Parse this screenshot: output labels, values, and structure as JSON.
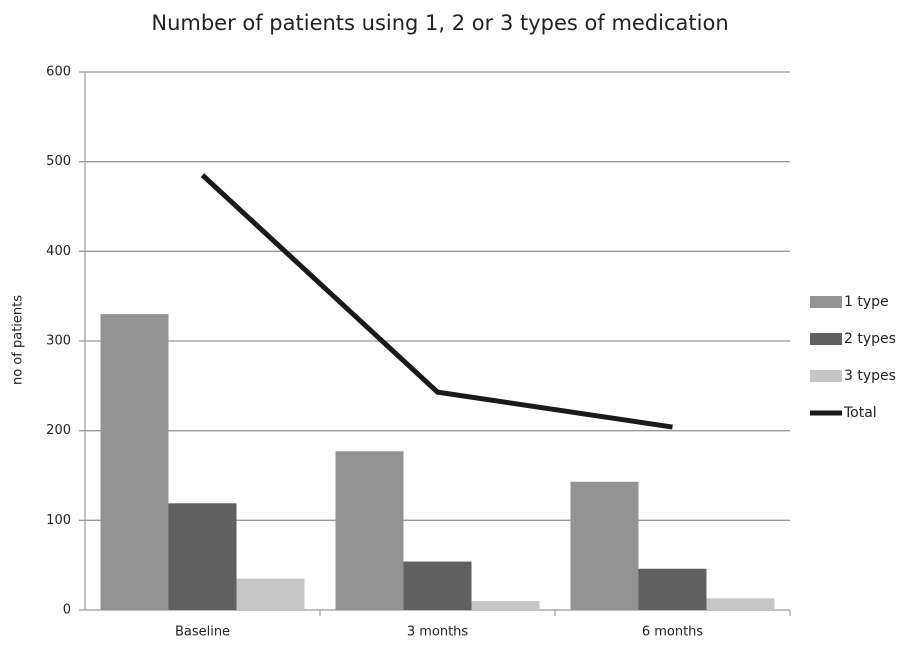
{
  "chart_data": {
    "type": "bar",
    "title": "Number of patients using 1, 2 or 3 types of medication",
    "ylabel": "no of patients",
    "categories": [
      "Baseline",
      "3 months",
      "6 months"
    ],
    "series": [
      {
        "name": "1 type",
        "color": "#939393",
        "values": [
          330,
          177,
          143
        ]
      },
      {
        "name": "2 types",
        "color": "#616161",
        "values": [
          119,
          54,
          46
        ]
      },
      {
        "name": "3 types",
        "color": "#c6c6c6",
        "values": [
          35,
          10,
          13
        ]
      },
      {
        "name": "Total",
        "type": "line",
        "color": "#1a1a1a",
        "values": [
          485,
          243,
          204
        ]
      }
    ],
    "ylim": [
      0,
      600
    ],
    "yticks": [
      0,
      100,
      200,
      300,
      400,
      500,
      600
    ],
    "grid": true,
    "legend": "right"
  }
}
